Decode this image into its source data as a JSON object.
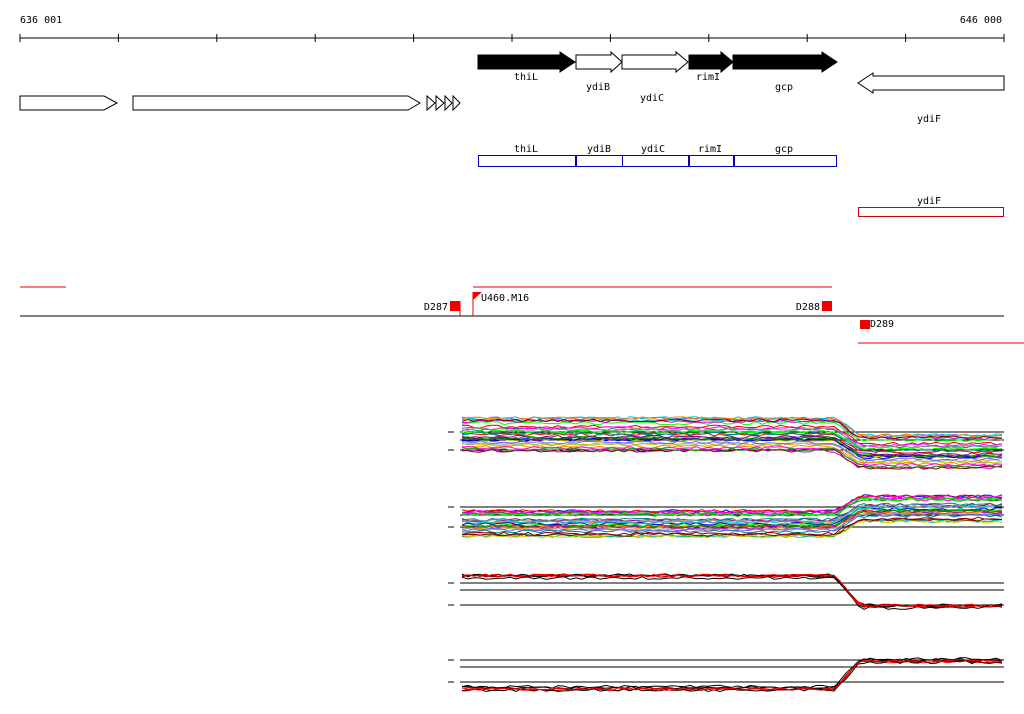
{
  "ruler": {
    "start": "636 001",
    "end": "646 000"
  },
  "genes": [
    "thiL",
    "ydiB",
    "ydiC",
    "rimI",
    "gcp",
    "ydiF"
  ],
  "operons": [
    "thiL",
    "ydiB",
    "ydiC",
    "rimI",
    "gcp"
  ],
  "operon_right": "ydiF",
  "probes": [
    "D287",
    "U460.M16",
    "D288",
    "D289"
  ]
}
